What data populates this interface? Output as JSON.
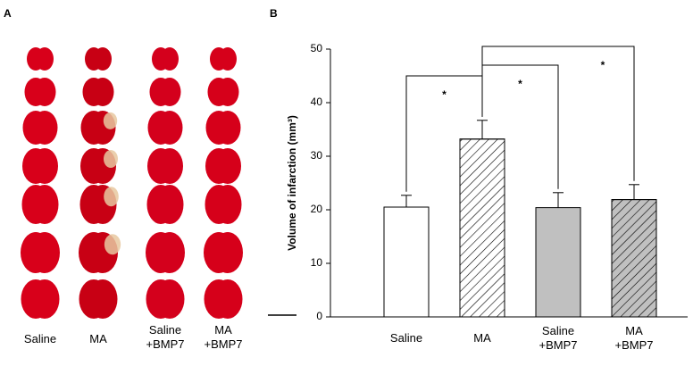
{
  "panel_labels": [
    "A",
    "B"
  ],
  "panel_a": {
    "columns": [
      "Saline",
      "MA",
      "Saline\n+BMP7",
      "MA\n+BMP7"
    ]
  },
  "chart_data": {
    "type": "bar",
    "ylabel": "Volume of infarction (mm³)",
    "categories": [
      "Saline",
      "MA",
      "Saline\n+BMP7",
      "MA\n+BMP7"
    ],
    "values": [
      20.5,
      33.2,
      20.4,
      21.9
    ],
    "errors": [
      2.2,
      3.5,
      2.8,
      2.8
    ],
    "colors": [
      "#ffffff",
      "#ffffff",
      "#c0c0c0",
      "#c0c0c0"
    ],
    "hatch": [
      false,
      true,
      false,
      true
    ],
    "ylim": [
      0,
      50
    ],
    "yticks": [
      0,
      10,
      20,
      30,
      40,
      50
    ],
    "significance": [
      {
        "pair": [
          "Saline",
          "MA"
        ],
        "label": "*"
      },
      {
        "pair": [
          "MA",
          "Saline\n+BMP7"
        ],
        "label": "*"
      },
      {
        "pair": [
          "MA",
          "MA\n+BMP7"
        ],
        "label": "*"
      }
    ]
  }
}
